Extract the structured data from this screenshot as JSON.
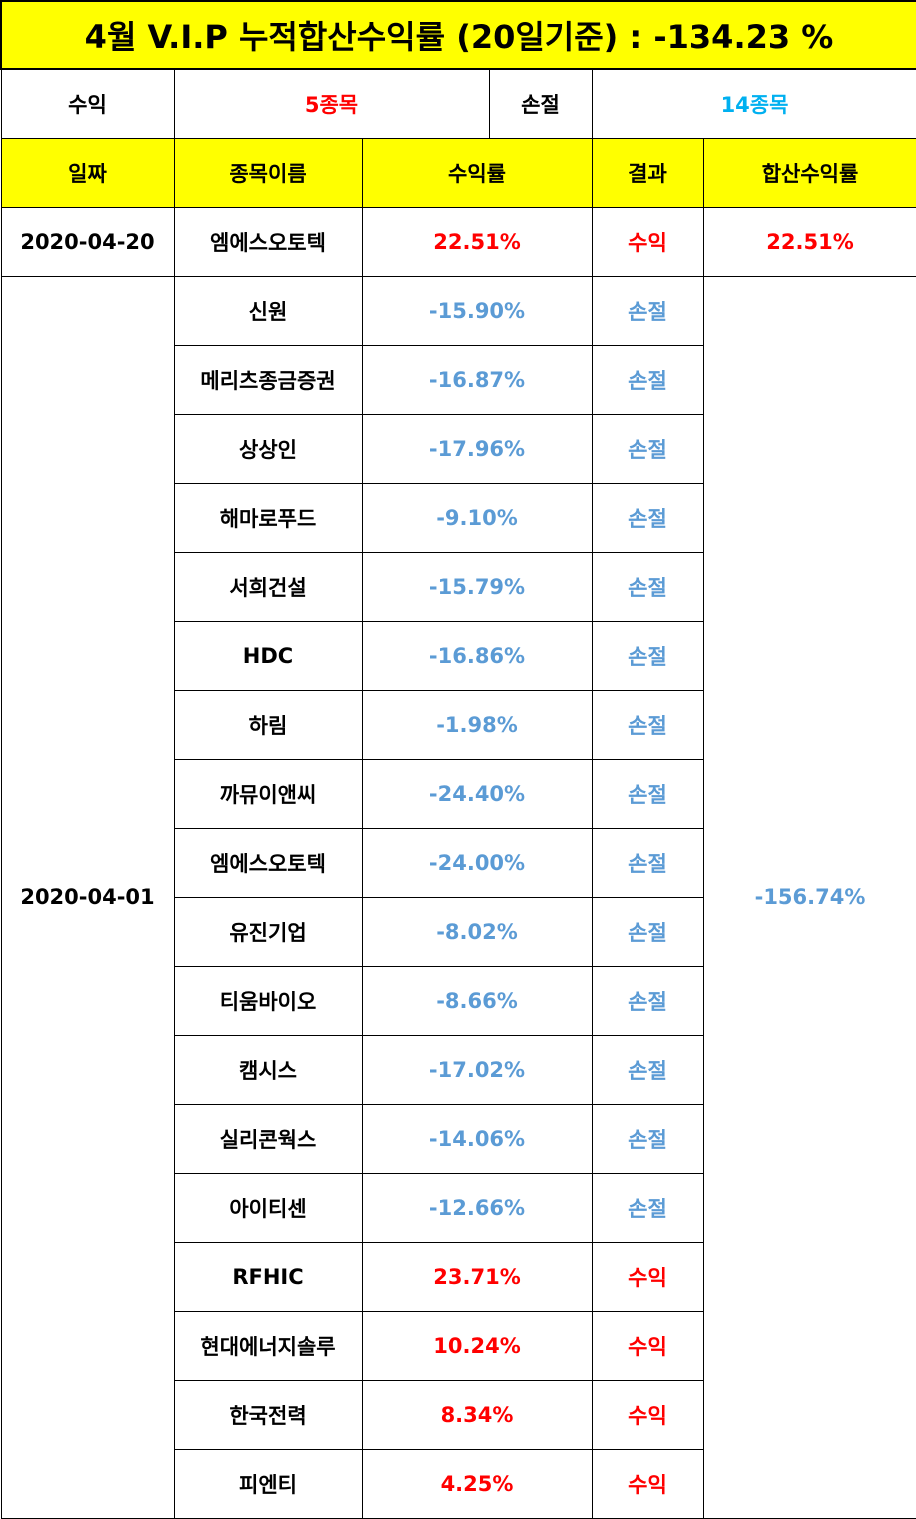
{
  "title": "4월 V.I.P 누적합산수익률 (20일기준) : -134.23 %",
  "summary": {
    "profit_label": "수익",
    "profit_value": "5종목",
    "loss_label": "손절",
    "loss_value": "14종목"
  },
  "headers": {
    "date": "일짜",
    "name": "종목이름",
    "rate": "수익률",
    "result": "결과",
    "total": "합산수익률"
  },
  "groups": [
    {
      "date": "2020-04-20",
      "total": "22.51%",
      "total_color": "red",
      "rows": [
        {
          "name": "엠에스오토텍",
          "rate": "22.51%",
          "result": "수익",
          "color": "red"
        }
      ]
    },
    {
      "date": "2020-04-01",
      "total": "-156.74%",
      "total_color": "blue",
      "rows": [
        {
          "name": "신원",
          "rate": "-15.90%",
          "result": "손절",
          "color": "blue"
        },
        {
          "name": "메리츠종금증권",
          "rate": "-16.87%",
          "result": "손절",
          "color": "blue"
        },
        {
          "name": "상상인",
          "rate": "-17.96%",
          "result": "손절",
          "color": "blue"
        },
        {
          "name": "해마로푸드",
          "rate": "-9.10%",
          "result": "손절",
          "color": "blue"
        },
        {
          "name": "서희건설",
          "rate": "-15.79%",
          "result": "손절",
          "color": "blue"
        },
        {
          "name": "HDC",
          "rate": "-16.86%",
          "result": "손절",
          "color": "blue"
        },
        {
          "name": "하림",
          "rate": "-1.98%",
          "result": "손절",
          "color": "blue"
        },
        {
          "name": "까뮤이앤씨",
          "rate": "-24.40%",
          "result": "손절",
          "color": "blue"
        },
        {
          "name": "엠에스오토텍",
          "rate": "-24.00%",
          "result": "손절",
          "color": "blue"
        },
        {
          "name": "유진기업",
          "rate": "-8.02%",
          "result": "손절",
          "color": "blue"
        },
        {
          "name": "티움바이오",
          "rate": "-8.66%",
          "result": "손절",
          "color": "blue"
        },
        {
          "name": "캠시스",
          "rate": "-17.02%",
          "result": "손절",
          "color": "blue"
        },
        {
          "name": "실리콘웍스",
          "rate": "-14.06%",
          "result": "손절",
          "color": "blue"
        },
        {
          "name": "아이티센",
          "rate": "-12.66%",
          "result": "손절",
          "color": "blue"
        },
        {
          "name": "RFHIC",
          "rate": "23.71%",
          "result": "수익",
          "color": "red"
        },
        {
          "name": "현대에너지솔루",
          "rate": "10.24%",
          "result": "수익",
          "color": "red"
        },
        {
          "name": "한국전력",
          "rate": "8.34%",
          "result": "수익",
          "color": "red"
        },
        {
          "name": "피엔티",
          "rate": "4.25%",
          "result": "수익",
          "color": "red"
        }
      ]
    }
  ]
}
